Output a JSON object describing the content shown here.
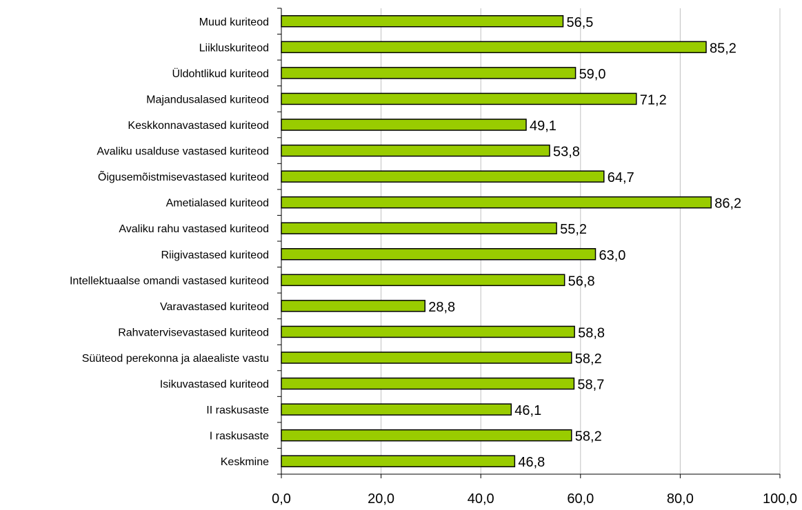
{
  "chart_data": {
    "type": "bar",
    "orientation": "horizontal",
    "categories": [
      "Muud kuriteod",
      "Liikluskuriteod",
      "Üldohtlikud kuriteod",
      "Majandusalased kuriteod",
      "Keskkonnavastased kuriteod",
      "Avaliku usalduse vastased kuriteod",
      "Õigusemõistmisevastased kuriteod",
      "Ametialased kuriteod",
      "Avaliku rahu vastased kuriteod",
      "Riigivastased kuriteod",
      "Intellektuaalse omandi vastased kuriteod",
      "Varavastased kuriteod",
      "Rahvatervisevastased kuriteod",
      "Süüteod perekonna ja alaealiste vastu",
      "Isikuvastased kuriteod",
      "II raskusaste",
      "I raskusaste",
      "Keskmine"
    ],
    "values": [
      56.5,
      85.2,
      59.0,
      71.2,
      49.1,
      53.8,
      64.7,
      86.2,
      55.2,
      63.0,
      56.8,
      28.8,
      58.8,
      58.2,
      58.7,
      46.1,
      58.2,
      46.8
    ],
    "value_labels": [
      "56,5",
      "85,2",
      "59,0",
      "71,2",
      "49,1",
      "53,8",
      "64,7",
      "86,2",
      "55,2",
      "63,0",
      "56,8",
      "28,8",
      "58,8",
      "58,2",
      "58,7",
      "46,1",
      "58,2",
      "46,8"
    ],
    "xlim": [
      0,
      100
    ],
    "x_ticks": [
      0,
      20,
      40,
      60,
      80,
      100
    ],
    "x_tick_labels": [
      "0,0",
      "20,0",
      "40,0",
      "60,0",
      "80,0",
      "100,0"
    ],
    "grid": "vertical",
    "bar_color": "#99cc00",
    "bar_edge_color": "#000000",
    "grid_color": "#c0c0c0",
    "title": "",
    "xlabel": "",
    "ylabel": ""
  }
}
